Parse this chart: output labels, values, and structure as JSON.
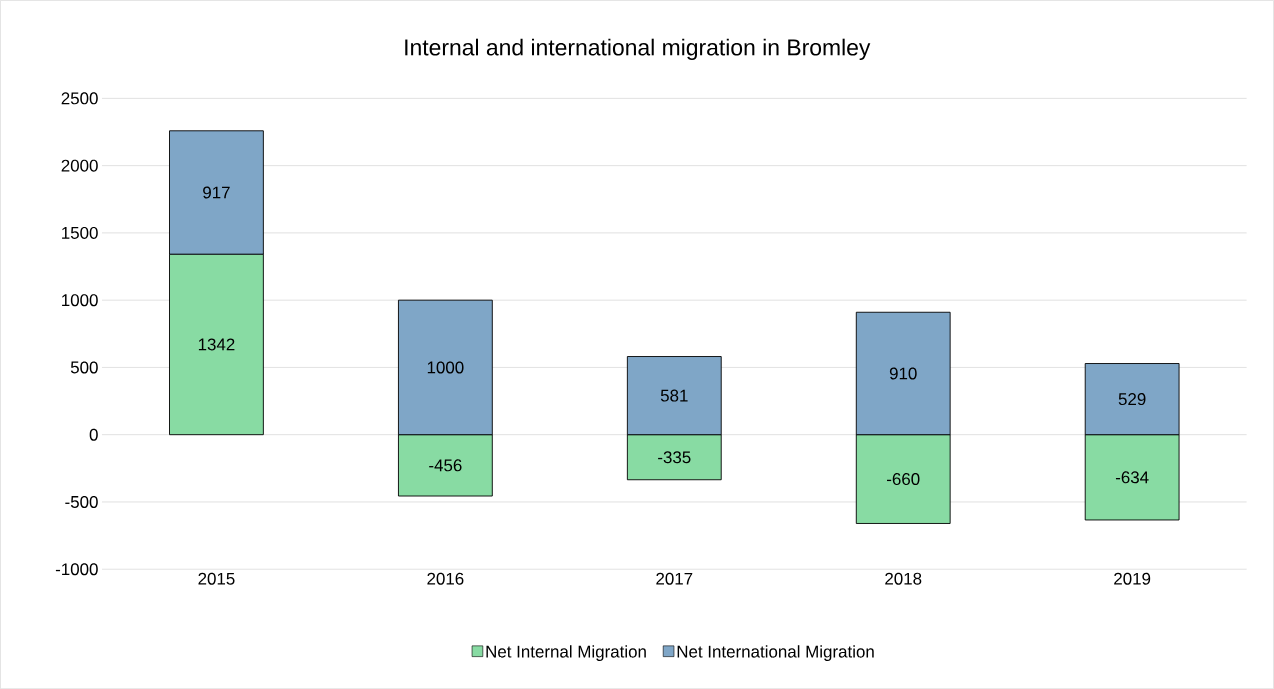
{
  "chart_data": {
    "type": "bar",
    "title": "Internal and international migration in Bromley",
    "categories": [
      "2015",
      "2016",
      "2017",
      "2018",
      "2019"
    ],
    "stacked": true,
    "series": [
      {
        "name": "Net Internal Migration",
        "color": "#88dba3",
        "values": [
          1342,
          -456,
          -335,
          -660,
          -634
        ],
        "value_labels": [
          "1342",
          "-456",
          "-335",
          "-660",
          "-634"
        ]
      },
      {
        "name": "Net International Migration",
        "color": "#7fa6c7",
        "values": [
          917,
          1000,
          581,
          910,
          529
        ],
        "value_labels": [
          "917",
          "1000",
          "581",
          "910",
          "529"
        ]
      }
    ],
    "ylim": [
      -1000,
      2500
    ],
    "yticks": [
      -1000,
      -500,
      0,
      500,
      1000,
      1500,
      2000,
      2500
    ],
    "grid": "y",
    "legend": "bottom"
  }
}
